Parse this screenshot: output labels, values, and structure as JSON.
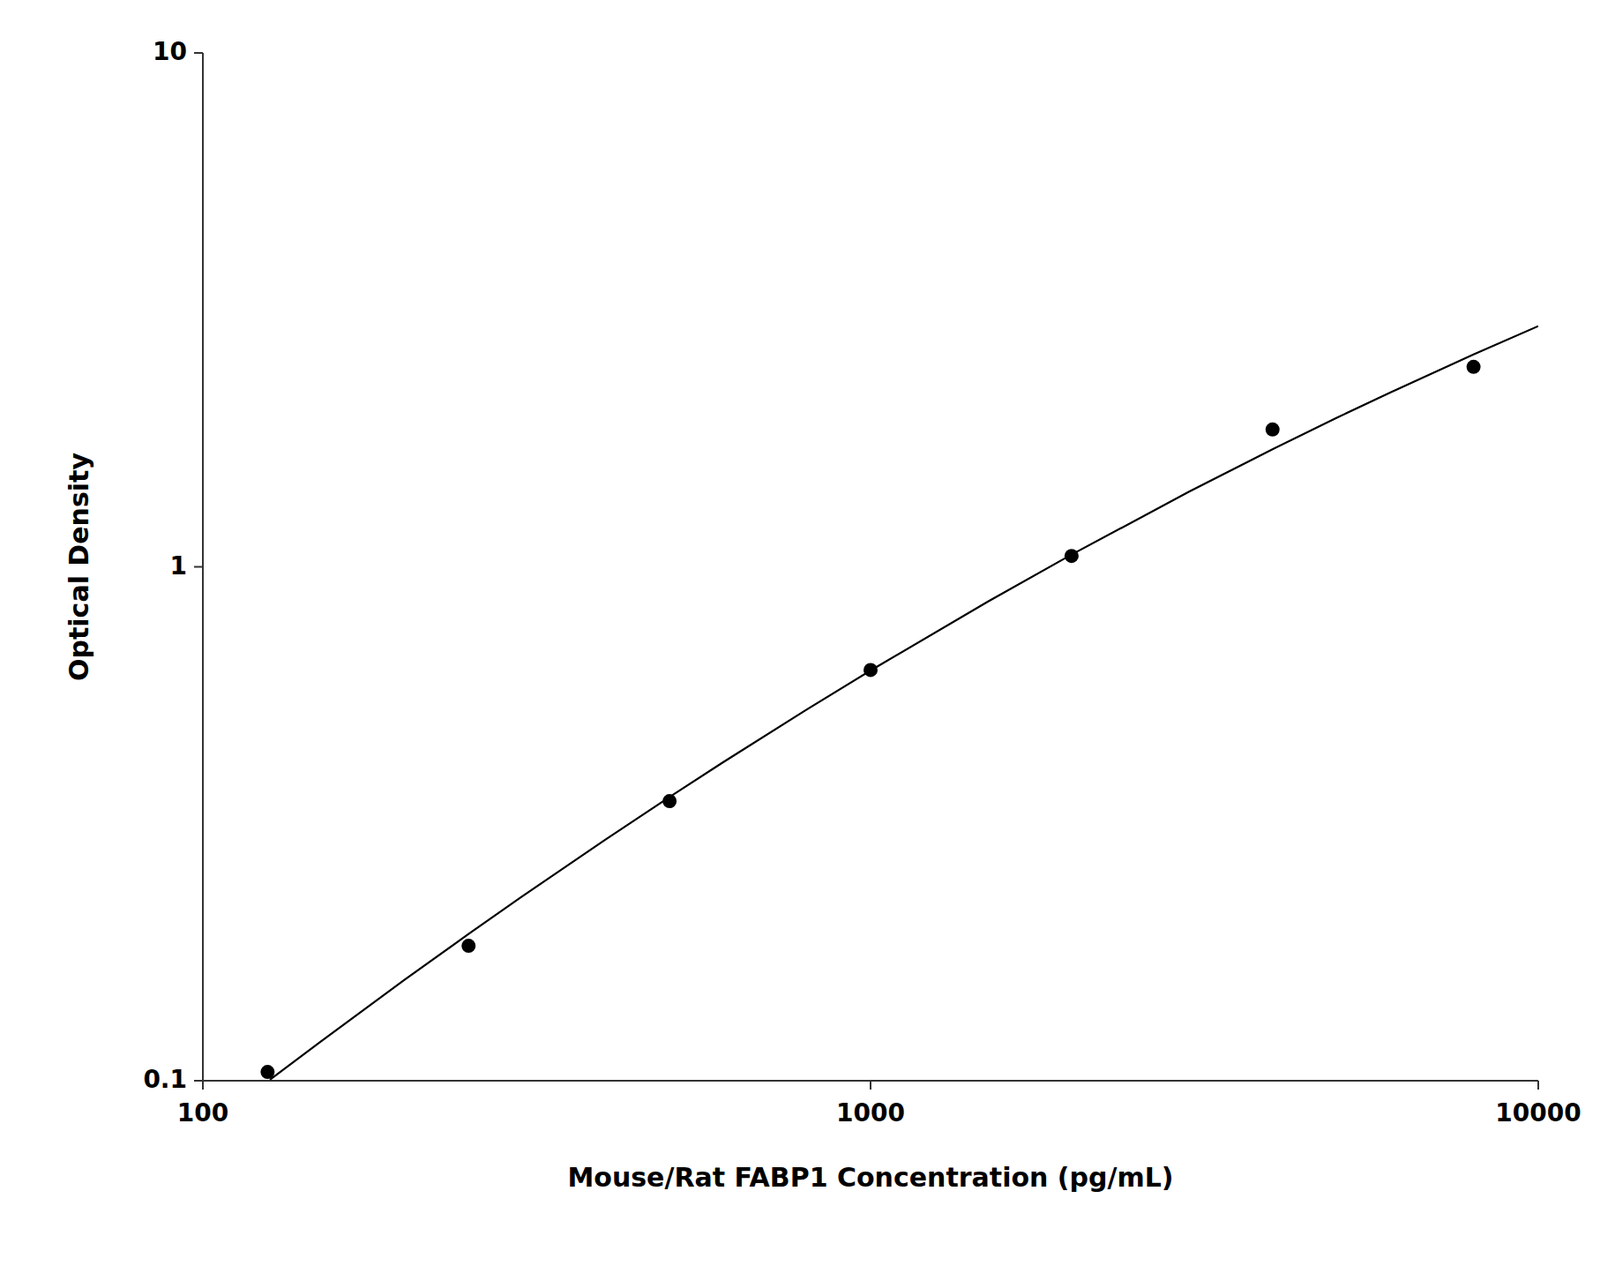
{
  "chart_data": {
    "type": "scatter",
    "xlabel": "Mouse/Rat FABP1 Concentration (pg/mL)",
    "ylabel": "Optical Density",
    "log": true,
    "grid": false,
    "xlim": [
      100,
      10000
    ],
    "ylim": [
      0.1,
      10
    ],
    "xticks": [
      100,
      1000,
      10000
    ],
    "yticks": [
      0.1,
      1,
      10
    ],
    "series": [
      {
        "type": "line",
        "color": "#000000",
        "x": [
          126,
          150,
          200,
          250,
          300,
          400,
          500,
          600,
          800,
          1000,
          1500,
          2000,
          3000,
          4000,
          5000,
          6000,
          8000,
          10000
        ],
        "values": [
          0.10043,
          0.11911,
          0.15681,
          0.193,
          0.22787,
          0.29416,
          0.35659,
          0.41581,
          0.52635,
          0.62843,
          0.85642,
          1.0564,
          1.4004,
          1.6937,
          1.952,
          2.184,
          2.5903,
          2.9402
        ]
      },
      {
        "type": "scatter",
        "color": "#000000",
        "marker": "circle",
        "x": [
          125,
          250,
          500,
          1000,
          2000,
          4000,
          8000
        ],
        "values": [
          0.104,
          0.183,
          0.35,
          0.63,
          1.05,
          1.85,
          2.45
        ]
      }
    ]
  }
}
